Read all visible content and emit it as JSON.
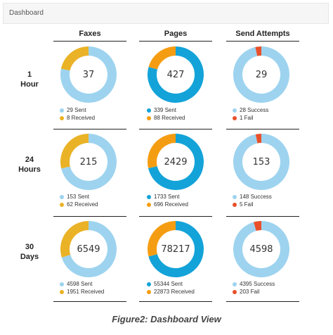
{
  "header": {
    "title": "Dashboard"
  },
  "columns": [
    "Faxes",
    "Pages",
    "Send Attempts"
  ],
  "rows": [
    {
      "label_lines": [
        "1",
        "Hour"
      ]
    },
    {
      "label_lines": [
        "24",
        "Hours"
      ]
    },
    {
      "label_lines": [
        "30",
        "Days"
      ]
    }
  ],
  "colors": {
    "light_blue": "#9dd3ef",
    "dark_blue": "#13a3d8",
    "orange": "#f59d12",
    "gold": "#eab226",
    "red": "#e8502a"
  },
  "cards": [
    {
      "total": "37",
      "a_label": "29 Sent",
      "a_value": 29,
      "a_color": "light_blue",
      "b_label": "8 Received",
      "b_value": 8,
      "b_color": "gold"
    },
    {
      "total": "427",
      "a_label": "339 Sent",
      "a_value": 339,
      "a_color": "dark_blue",
      "b_label": "88 Received",
      "b_value": 88,
      "b_color": "orange"
    },
    {
      "total": "29",
      "a_label": "28 Success",
      "a_value": 28,
      "a_color": "light_blue",
      "b_label": "1 Fail",
      "b_value": 1,
      "b_color": "red"
    },
    {
      "total": "215",
      "a_label": "153 Sent",
      "a_value": 153,
      "a_color": "light_blue",
      "b_label": "62 Received",
      "b_value": 62,
      "b_color": "gold"
    },
    {
      "total": "2429",
      "a_label": "1733 Sent",
      "a_value": 1733,
      "a_color": "dark_blue",
      "b_label": "696 Received",
      "b_value": 696,
      "b_color": "orange"
    },
    {
      "total": "153",
      "a_label": "148 Success",
      "a_value": 148,
      "a_color": "light_blue",
      "b_label": "5 Fail",
      "b_value": 5,
      "b_color": "red"
    },
    {
      "total": "6549",
      "a_label": "4598 Sent",
      "a_value": 4598,
      "a_color": "light_blue",
      "b_label": "1951 Received",
      "b_value": 1951,
      "b_color": "gold"
    },
    {
      "total": "78217",
      "a_label": "55344 Sent",
      "a_value": 55344,
      "a_color": "dark_blue",
      "b_label": "22873 Received",
      "b_value": 22873,
      "b_color": "orange"
    },
    {
      "total": "4598",
      "a_label": "4395 Success",
      "a_value": 4395,
      "a_color": "light_blue",
      "b_label": "203 Fail",
      "b_value": 203,
      "b_color": "red"
    }
  ],
  "caption": "Figure2: Dashboard View"
}
